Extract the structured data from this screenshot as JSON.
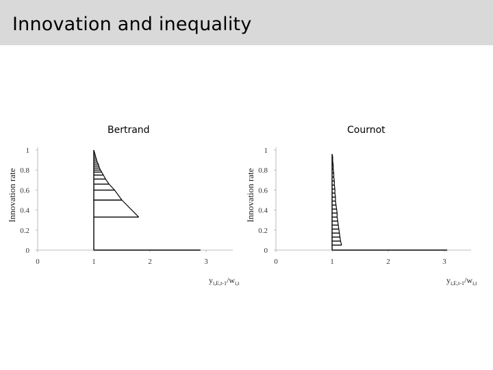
{
  "slide": {
    "title": "Innovation and inequality"
  },
  "chart_data": [
    {
      "type": "line",
      "title": "Bertrand",
      "ylabel": "Innovation rate",
      "xlabel": "y",
      "xlabel_sub": "i,E,t-1",
      "xlabel_rest": "/w",
      "xlabel_sub2": "i,t",
      "xlim": [
        0,
        3.5
      ],
      "ylim": [
        0,
        1
      ],
      "xticks": [
        0,
        1,
        2,
        3
      ],
      "yticks": [
        0,
        0.2,
        0.4,
        0.6,
        0.8,
        1
      ],
      "ytick_labels": [
        "0",
        "0.2",
        "0.4",
        "0.6",
        "0.8",
        "1"
      ],
      "grid": false,
      "series": [
        {
          "segments": [
            {
              "y": 0,
              "x": [
                1,
                2.9
              ]
            },
            {
              "y": 0.33,
              "x": [
                1,
                1.8
              ]
            },
            {
              "y": 0.5,
              "x": [
                1,
                1.5
              ]
            },
            {
              "y": 0.6,
              "x": [
                1,
                1.37
              ]
            },
            {
              "y": 0.66,
              "x": [
                1,
                1.27
              ]
            },
            {
              "y": 0.71,
              "x": [
                1,
                1.21
              ]
            },
            {
              "y": 0.75,
              "x": [
                1,
                1.17
              ]
            },
            {
              "y": 0.78,
              "x": [
                1,
                1.14
              ]
            },
            {
              "y": 0.8,
              "x": [
                1,
                1.12
              ]
            },
            {
              "y": 0.82,
              "x": [
                1,
                1.1
              ]
            },
            {
              "y": 0.84,
              "x": [
                1,
                1.09
              ]
            },
            {
              "y": 0.86,
              "x": [
                1,
                1.08
              ]
            },
            {
              "y": 0.88,
              "x": [
                1,
                1.06
              ]
            },
            {
              "y": 0.9,
              "x": [
                1,
                1.05
              ]
            },
            {
              "y": 0.92,
              "x": [
                1,
                1.04
              ]
            },
            {
              "y": 0.94,
              "x": [
                1,
                1.03
              ]
            },
            {
              "y": 0.96,
              "x": [
                1,
                1.02
              ]
            },
            {
              "y": 0.98,
              "x": [
                1,
                1.01
              ]
            },
            {
              "y": 1.0,
              "x": [
                1,
                1.0
              ]
            }
          ]
        }
      ]
    },
    {
      "type": "line",
      "title": "Cournot",
      "ylabel": "Innovation rate",
      "xlabel": "y",
      "xlabel_sub": "i,E,t-1",
      "xlabel_rest": "/w",
      "xlabel_sub2": "i,t",
      "xlim": [
        0,
        3.5
      ],
      "ylim": [
        0,
        1
      ],
      "xticks": [
        0,
        1,
        2,
        3
      ],
      "yticks": [
        0,
        0.2,
        0.4,
        0.6,
        0.8,
        1
      ],
      "ytick_labels": [
        "0",
        "0.2",
        "0.4",
        "0.6",
        "0.8",
        "1"
      ],
      "grid": false,
      "series": [
        {
          "segments": [
            {
              "y": 0,
              "x": [
                1,
                2.05
              ]
            },
            {
              "y": 0.05,
              "x": [
                1,
                1.17
              ]
            },
            {
              "y": 0.09,
              "x": [
                1,
                1.15
              ]
            },
            {
              "y": 0.13,
              "x": [
                1,
                1.14
              ]
            },
            {
              "y": 0.17,
              "x": [
                1,
                1.13
              ]
            },
            {
              "y": 0.21,
              "x": [
                1,
                1.12
              ]
            },
            {
              "y": 0.25,
              "x": [
                1,
                1.11
              ]
            },
            {
              "y": 0.29,
              "x": [
                1,
                1.1
              ]
            },
            {
              "y": 0.33,
              "x": [
                1,
                1.09
              ]
            },
            {
              "y": 0.37,
              "x": [
                1,
                1.09
              ]
            },
            {
              "y": 0.41,
              "x": [
                1,
                1.08
              ]
            },
            {
              "y": 0.45,
              "x": [
                1,
                1.07
              ]
            },
            {
              "y": 0.49,
              "x": [
                1,
                1.06
              ]
            },
            {
              "y": 0.53,
              "x": [
                1,
                1.06
              ]
            },
            {
              "y": 0.57,
              "x": [
                1,
                1.05
              ]
            },
            {
              "y": 0.61,
              "x": [
                1,
                1.05
              ]
            },
            {
              "y": 0.65,
              "x": [
                1,
                1.04
              ]
            },
            {
              "y": 0.69,
              "x": [
                1,
                1.04
              ]
            },
            {
              "y": 0.73,
              "x": [
                1,
                1.03
              ]
            },
            {
              "y": 0.77,
              "x": [
                1,
                1.03
              ]
            },
            {
              "y": 0.81,
              "x": [
                1,
                1.02
              ]
            },
            {
              "y": 0.85,
              "x": [
                1,
                1.02
              ]
            },
            {
              "y": 0.89,
              "x": [
                1,
                1.01
              ]
            },
            {
              "y": 0.93,
              "x": [
                1,
                1.01
              ]
            },
            {
              "y": 0.96,
              "x": [
                1,
                1.0
              ]
            }
          ],
          "tail": {
            "y": 0,
            "x": [
              2.05,
              3.05
            ]
          }
        }
      ]
    }
  ]
}
